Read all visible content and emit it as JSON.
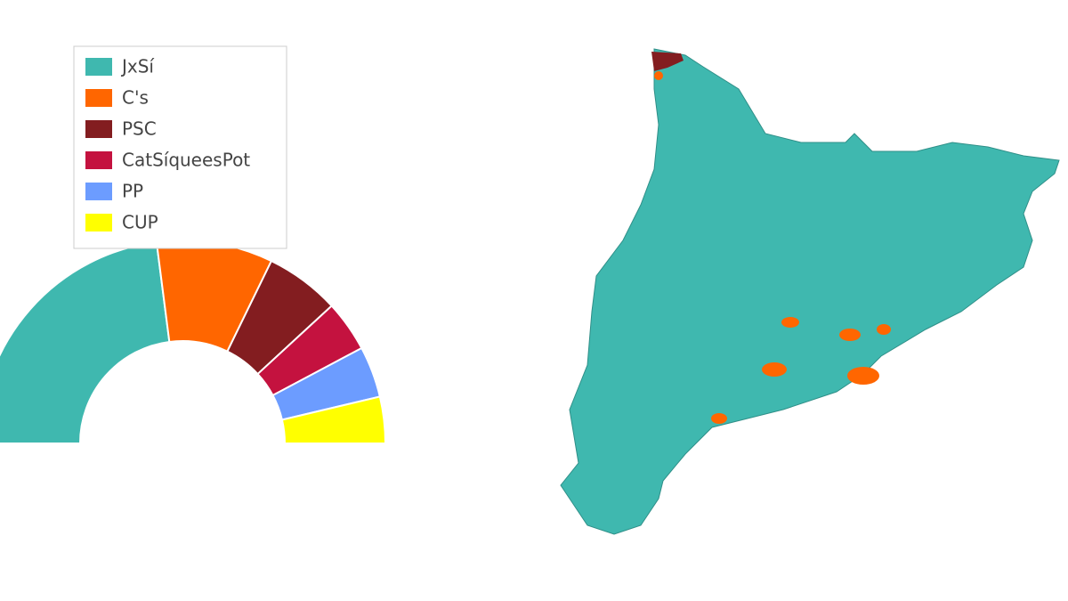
{
  "chart_data": {
    "type": "donut",
    "categories": [
      "JxSí",
      "C's",
      "PSC",
      "CatSíqueesPot",
      "PP",
      "CUP"
    ],
    "values": [
      62,
      25,
      16,
      11,
      11,
      10
    ],
    "colors": [
      "#3fb8af",
      "#ff6600",
      "#831d20",
      "#c4123f",
      "#6c9cff",
      "#ffff00"
    ],
    "legend": "top-left"
  }
}
